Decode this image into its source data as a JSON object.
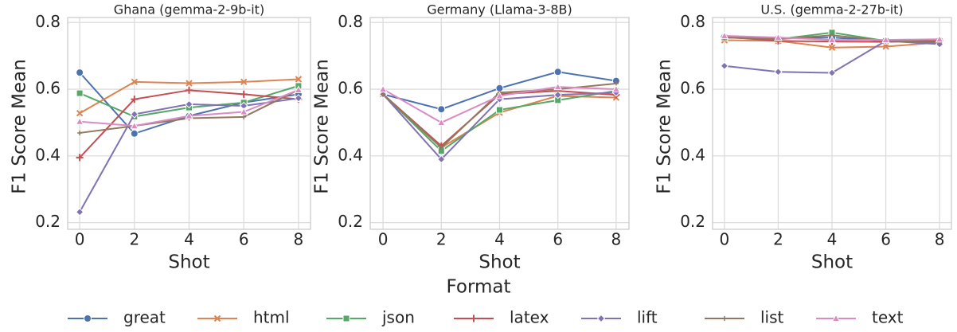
{
  "chart_data": [
    {
      "type": "line",
      "title": "Ghana (gemma-2-9b-it)",
      "x_label": "Shot",
      "y_label": "F1 Score Mean",
      "x": [
        0,
        2,
        4,
        6,
        8
      ],
      "xlim": [
        -0.44,
        8.44
      ],
      "xticks": [
        0,
        2,
        4,
        6,
        8
      ],
      "ylim": [
        0.18,
        0.815
      ],
      "yticks": [
        0.2,
        0.4,
        0.6,
        0.8
      ],
      "grid": true,
      "series": [
        {
          "name": "great",
          "color": "#4c72b0",
          "marker": "circle",
          "values": [
            0.65,
            0.467,
            0.52,
            0.56,
            0.585
          ]
        },
        {
          "name": "html",
          "color": "#dd8452",
          "marker": "x",
          "values": [
            0.528,
            0.622,
            0.618,
            0.622,
            0.63
          ]
        },
        {
          "name": "json",
          "color": "#55a868",
          "marker": "square",
          "values": [
            0.588,
            0.518,
            0.545,
            0.56,
            0.61
          ]
        },
        {
          "name": "latex",
          "color": "#c44e52",
          "marker": "plus",
          "values": [
            0.395,
            0.57,
            0.597,
            0.585,
            0.57
          ]
        },
        {
          "name": "lift",
          "color": "#8172b3",
          "marker": "diamond",
          "values": [
            0.232,
            0.525,
            0.555,
            0.55,
            0.573
          ]
        },
        {
          "name": "list",
          "color": "#937860",
          "marker": "thin-plus",
          "values": [
            0.469,
            0.49,
            0.513,
            0.517,
            0.598
          ]
        },
        {
          "name": "text",
          "color": "#da8bc3",
          "marker": "triangle",
          "values": [
            0.503,
            0.49,
            0.52,
            0.532,
            0.598
          ]
        }
      ]
    },
    {
      "type": "line",
      "title": "Germany (Llama-3-8B)",
      "x_label": "Shot",
      "y_label": "F1 Score Mean",
      "x": [
        0,
        2,
        4,
        6,
        8
      ],
      "xlim": [
        -0.44,
        8.44
      ],
      "xticks": [
        0,
        2,
        4,
        6,
        8
      ],
      "ylim": [
        0.18,
        0.815
      ],
      "yticks": [
        0.2,
        0.4,
        0.6,
        0.8
      ],
      "grid": true,
      "series": [
        {
          "name": "great",
          "color": "#4c72b0",
          "marker": "circle",
          "values": [
            0.585,
            0.54,
            0.603,
            0.652,
            0.625
          ]
        },
        {
          "name": "html",
          "color": "#dd8452",
          "marker": "x",
          "values": [
            0.585,
            0.425,
            0.53,
            0.58,
            0.575
          ]
        },
        {
          "name": "json",
          "color": "#55a868",
          "marker": "square",
          "values": [
            0.585,
            0.415,
            0.538,
            0.567,
            0.595
          ]
        },
        {
          "name": "latex",
          "color": "#c44e52",
          "marker": "plus",
          "values": [
            0.585,
            0.43,
            0.585,
            0.595,
            0.583
          ]
        },
        {
          "name": "lift",
          "color": "#8172b3",
          "marker": "diamond",
          "values": [
            0.585,
            0.39,
            0.57,
            0.583,
            0.59
          ]
        },
        {
          "name": "list",
          "color": "#937860",
          "marker": "thin-plus",
          "values": [
            0.585,
            0.425,
            0.59,
            0.6,
            0.617
          ]
        },
        {
          "name": "text",
          "color": "#da8bc3",
          "marker": "triangle",
          "values": [
            0.6,
            0.5,
            0.58,
            0.607,
            0.6
          ]
        }
      ]
    },
    {
      "type": "line",
      "title": "U.S. (gemma-2-27b-it)",
      "x_label": "Shot",
      "y_label": "F1 Score Mean",
      "x": [
        0,
        2,
        4,
        6,
        8
      ],
      "xlim": [
        -0.44,
        8.44
      ],
      "xticks": [
        0,
        2,
        4,
        6,
        8
      ],
      "ylim": [
        0.18,
        0.815
      ],
      "yticks": [
        0.2,
        0.4,
        0.6,
        0.8
      ],
      "grid": true,
      "series": [
        {
          "name": "great",
          "color": "#4c72b0",
          "marker": "circle",
          "values": [
            0.755,
            0.752,
            0.755,
            0.745,
            0.74
          ]
        },
        {
          "name": "html",
          "color": "#dd8452",
          "marker": "x",
          "values": [
            0.747,
            0.745,
            0.725,
            0.728,
            0.74
          ]
        },
        {
          "name": "json",
          "color": "#55a868",
          "marker": "square",
          "values": [
            0.755,
            0.75,
            0.77,
            0.745,
            0.745
          ]
        },
        {
          "name": "latex",
          "color": "#c44e52",
          "marker": "plus",
          "values": [
            0.757,
            0.745,
            0.743,
            0.742,
            0.745
          ]
        },
        {
          "name": "lift",
          "color": "#8172b3",
          "marker": "diamond",
          "values": [
            0.67,
            0.652,
            0.649,
            0.745,
            0.735
          ]
        },
        {
          "name": "list",
          "color": "#937860",
          "marker": "thin-plus",
          "values": [
            0.755,
            0.75,
            0.762,
            0.745,
            0.74
          ]
        },
        {
          "name": "text",
          "color": "#da8bc3",
          "marker": "triangle",
          "values": [
            0.76,
            0.755,
            0.748,
            0.748,
            0.75
          ]
        }
      ]
    }
  ],
  "legend": {
    "title": "Format"
  }
}
